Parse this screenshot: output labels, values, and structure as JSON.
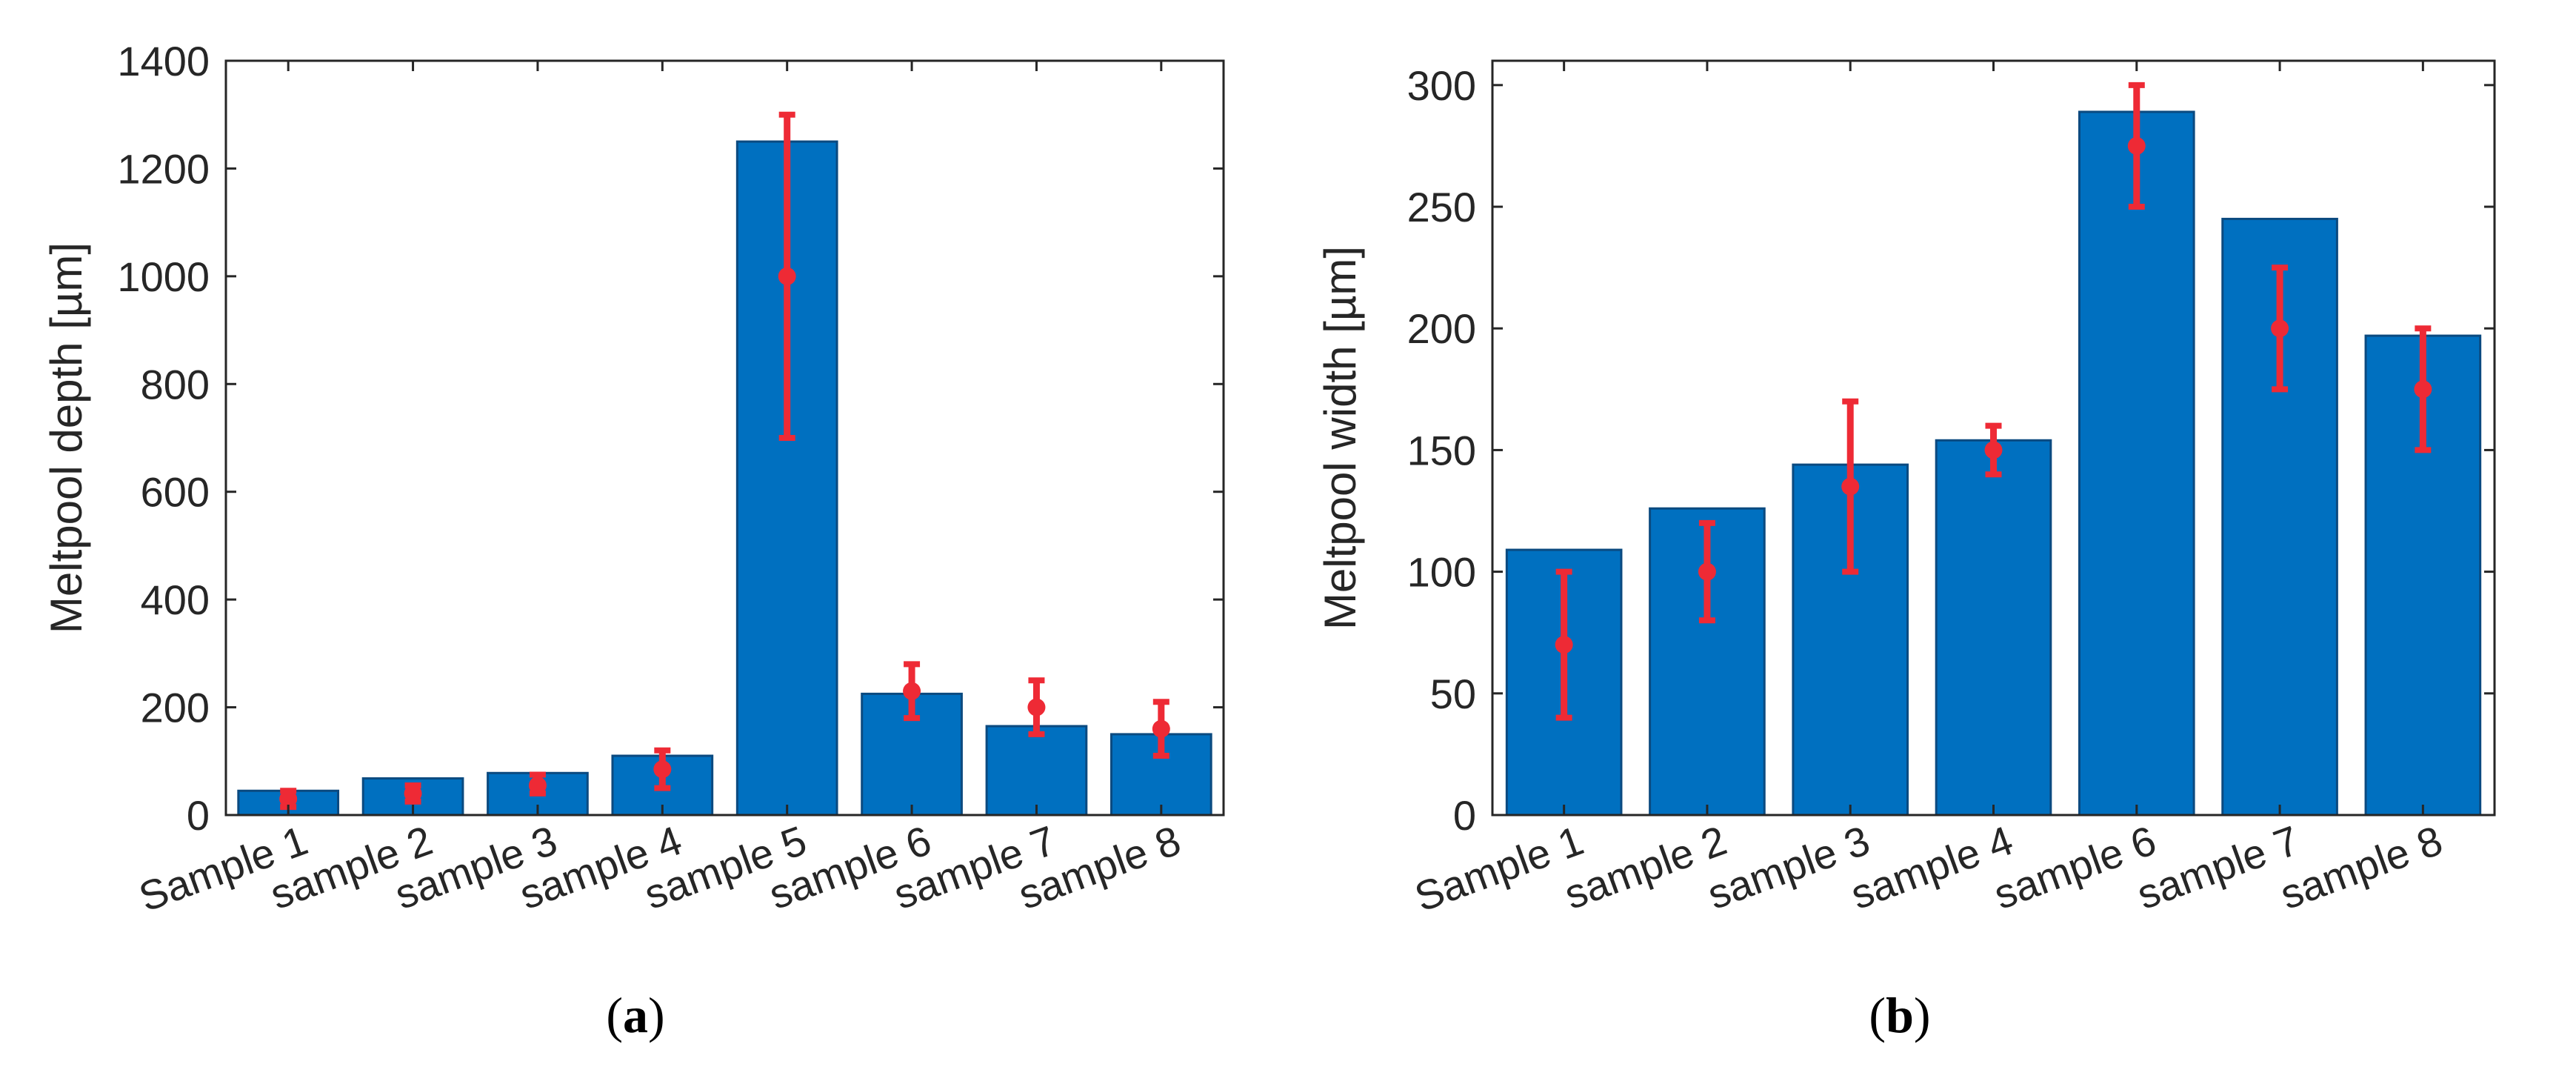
{
  "colors": {
    "bar_fill": "#0070c0",
    "bar_edge": "#0b4a80",
    "error_bar": "#ee2a35",
    "axis": "#262626",
    "background": "#ffffff"
  },
  "chart_data": [
    {
      "type": "bar",
      "panel_label": "a",
      "title": "",
      "xlabel": "",
      "ylabel": "Meltpool depth [µm]",
      "ylim": [
        0,
        1400
      ],
      "yticks": [
        0,
        200,
        400,
        600,
        800,
        1000,
        1200,
        1400
      ],
      "grid": false,
      "categories": [
        "Sample 1",
        "sample 2",
        "sample 3",
        "sample 4",
        "sample 5",
        "sample 6",
        "sample 7",
        "sample 8"
      ],
      "values": [
        45,
        68,
        78,
        110,
        1250,
        225,
        165,
        150
      ],
      "error_bars": {
        "center": [
          30,
          40,
          55,
          85,
          1000,
          230,
          200,
          160
        ],
        "lower": [
          15,
          25,
          40,
          50,
          700,
          180,
          150,
          110
        ],
        "upper": [
          45,
          55,
          75,
          120,
          1300,
          280,
          250,
          210
        ]
      }
    },
    {
      "type": "bar",
      "panel_label": "b",
      "title": "",
      "xlabel": "",
      "ylabel": "Meltpool width [µm]",
      "ylim": [
        0,
        310
      ],
      "yticks": [
        0,
        50,
        100,
        150,
        200,
        250,
        300
      ],
      "grid": false,
      "categories": [
        "Sample 1",
        "sample 2",
        "sample 3",
        "sample 4",
        "sample 6",
        "sample 7",
        "sample 8"
      ],
      "values": [
        109,
        126,
        144,
        154,
        289,
        245,
        197
      ],
      "error_bars": {
        "center": [
          70,
          100,
          135,
          150,
          275,
          200,
          175
        ],
        "lower": [
          40,
          80,
          100,
          140,
          250,
          175,
          150
        ],
        "upper": [
          100,
          120,
          170,
          160,
          300,
          225,
          200
        ]
      }
    }
  ]
}
